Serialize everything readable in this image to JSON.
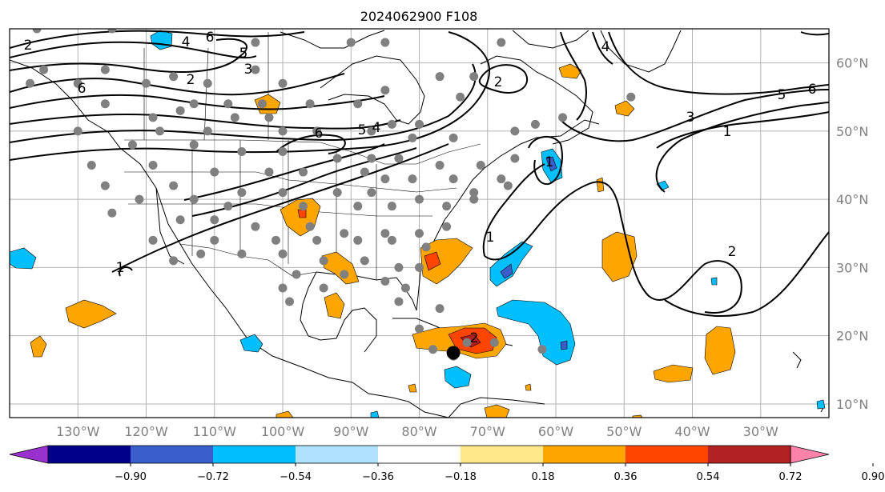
{
  "title": "2024062900 F108",
  "map": {
    "lon_range": [
      -140,
      -20
    ],
    "lat_range": [
      8,
      65
    ],
    "longitude_labels": [
      "130°W",
      "120°W",
      "110°W",
      "100°W",
      "90°W",
      "80°W",
      "70°W",
      "60°W",
      "50°W",
      "40°W",
      "30°W"
    ],
    "latitude_labels": [
      "60°N",
      "50°N",
      "40°N",
      "30°N",
      "20°N",
      "10°N"
    ],
    "gridlines": true
  },
  "colorbar": {
    "tick_labels": [
      "−0.90",
      "−0.72",
      "−0.54",
      "−0.36",
      "−0.18",
      "0.18",
      "0.36",
      "0.54",
      "0.72",
      "0.90"
    ],
    "colors": [
      "#9932cc",
      "#00008b",
      "#3a5fcd",
      "#00bfff",
      "#b0e2ff",
      "#ffffff",
      "#ffe88a",
      "#ffa500",
      "#ff4500",
      "#b22222",
      "#ff82ab"
    ],
    "extend": "both"
  },
  "contour_labels": [
    "2",
    "6",
    "4",
    "5",
    "3",
    "2",
    "6",
    "6",
    "5",
    "4",
    "2",
    "1",
    "1",
    "1",
    "2",
    "3",
    "1",
    "5",
    "6",
    "4",
    "2"
  ],
  "storm_marker": {
    "lon": -75,
    "lat": 17.5,
    "color": "#000000"
  },
  "gray_dots": [
    [
      -136,
      65
    ],
    [
      -125,
      65
    ],
    [
      -104,
      63
    ],
    [
      -90,
      63
    ],
    [
      -85,
      63
    ],
    [
      -68,
      63
    ],
    [
      -135,
      59
    ],
    [
      -126,
      59
    ],
    [
      -104,
      59
    ],
    [
      -116,
      58
    ],
    [
      -137,
      57
    ],
    [
      -130,
      57
    ],
    [
      -120,
      57
    ],
    [
      -111,
      57
    ],
    [
      -100,
      57
    ],
    [
      -77,
      58
    ],
    [
      -72,
      58
    ],
    [
      -126,
      54
    ],
    [
      -113,
      54
    ],
    [
      -108,
      54
    ],
    [
      -103,
      54
    ],
    [
      -96,
      54
    ],
    [
      -89,
      54
    ],
    [
      -85,
      56
    ],
    [
      -74,
      55
    ],
    [
      -49,
      55
    ],
    [
      -115,
      53
    ],
    [
      -119,
      52
    ],
    [
      -107,
      52
    ],
    [
      -102,
      52
    ],
    [
      -84,
      51
    ],
    [
      -80,
      51
    ],
    [
      -63,
      51
    ],
    [
      -59,
      52
    ],
    [
      -130,
      50
    ],
    [
      -118,
      50
    ],
    [
      -111,
      50
    ],
    [
      -100,
      50
    ],
    [
      -95,
      50
    ],
    [
      -87,
      50
    ],
    [
      -81,
      49
    ],
    [
      -75,
      49
    ],
    [
      -66,
      50
    ],
    [
      -122,
      48
    ],
    [
      -113,
      48
    ],
    [
      -106,
      47
    ],
    [
      -100,
      47
    ],
    [
      -92,
      46
    ],
    [
      -87,
      46
    ],
    [
      -83,
      46
    ],
    [
      -77,
      45
    ],
    [
      -71,
      45
    ],
    [
      -66,
      46
    ],
    [
      -128,
      45
    ],
    [
      -119,
      45
    ],
    [
      -110,
      44
    ],
    [
      -102,
      44
    ],
    [
      -97,
      44
    ],
    [
      -88,
      44
    ],
    [
      -85,
      43
    ],
    [
      -81,
      43
    ],
    [
      -75,
      43
    ],
    [
      -68,
      43
    ],
    [
      -126,
      42
    ],
    [
      -116,
      42
    ],
    [
      -106,
      41
    ],
    [
      -100,
      41
    ],
    [
      -92,
      41
    ],
    [
      -87,
      41
    ],
    [
      -80,
      40
    ],
    [
      -72,
      41
    ],
    [
      -67,
      42
    ],
    [
      -121,
      40
    ],
    [
      -113,
      40
    ],
    [
      -108,
      39
    ],
    [
      -97,
      39
    ],
    [
      -89,
      39
    ],
    [
      -84,
      39
    ],
    [
      -76,
      39
    ],
    [
      -72,
      40
    ],
    [
      -125,
      38
    ],
    [
      -115,
      37
    ],
    [
      -110,
      37
    ],
    [
      -104,
      36
    ],
    [
      -96,
      36
    ],
    [
      -91,
      35
    ],
    [
      -85,
      35
    ],
    [
      -80,
      35
    ],
    [
      -76,
      36
    ],
    [
      -119,
      34
    ],
    [
      -110,
      34
    ],
    [
      -101,
      34
    ],
    [
      -95,
      34
    ],
    [
      -89,
      34
    ],
    [
      -84,
      34
    ],
    [
      -79,
      33
    ],
    [
      -112,
      32
    ],
    [
      -106,
      32
    ],
    [
      -100,
      32
    ],
    [
      -94,
      31
    ],
    [
      -88,
      31
    ],
    [
      -83,
      30
    ],
    [
      -80,
      30
    ],
    [
      -116,
      31
    ],
    [
      -98,
      29
    ],
    [
      -91,
      29
    ],
    [
      -85,
      28
    ],
    [
      -100,
      27
    ],
    [
      -94,
      27
    ],
    [
      -82,
      27
    ],
    [
      -99,
      25
    ],
    [
      -83,
      25
    ],
    [
      -77,
      24
    ],
    [
      -80,
      21
    ],
    [
      -73,
      19
    ],
    [
      -69,
      19
    ],
    [
      -62,
      18
    ],
    [
      -75,
      17
    ],
    [
      -78,
      18
    ]
  ]
}
